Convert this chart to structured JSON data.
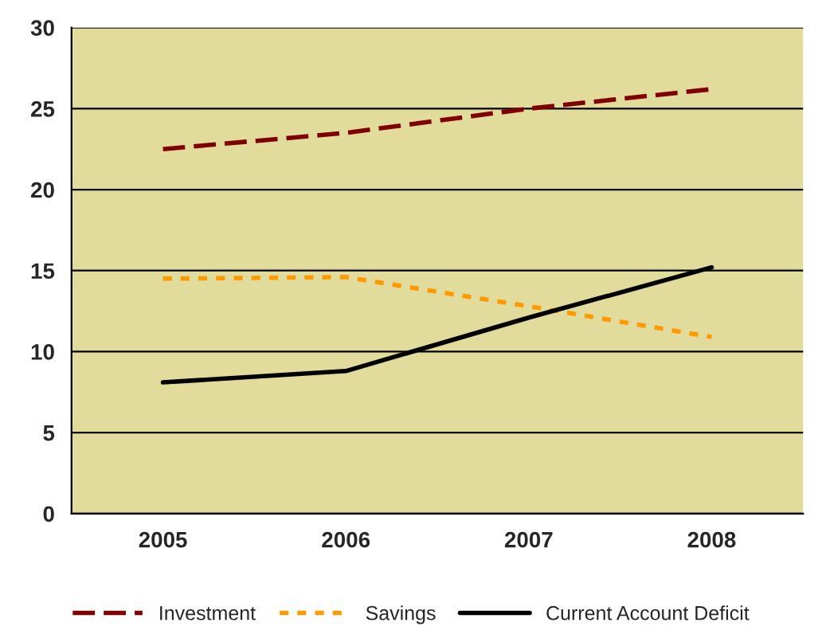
{
  "chart_data": {
    "type": "line",
    "categories": [
      "2005",
      "2006",
      "2007",
      "2008"
    ],
    "series": [
      {
        "name": "Investment",
        "color": "#800000",
        "values": [
          22.5,
          23.5,
          25.0,
          26.2
        ],
        "line_style": "dashed"
      },
      {
        "name": "Savings",
        "color": "#ff9900",
        "values": [
          14.5,
          14.6,
          12.8,
          10.9
        ],
        "line_style": "dotted"
      },
      {
        "name": "Current Account Deficit",
        "color": "#000000",
        "values": [
          8.1,
          8.8,
          12.1,
          15.2
        ],
        "line_style": "solid"
      }
    ],
    "ylim": [
      0,
      30
    ],
    "yticks": [
      0,
      5,
      10,
      15,
      20,
      25,
      30
    ],
    "grid": "y",
    "legend": "bottom",
    "marker": "none"
  }
}
